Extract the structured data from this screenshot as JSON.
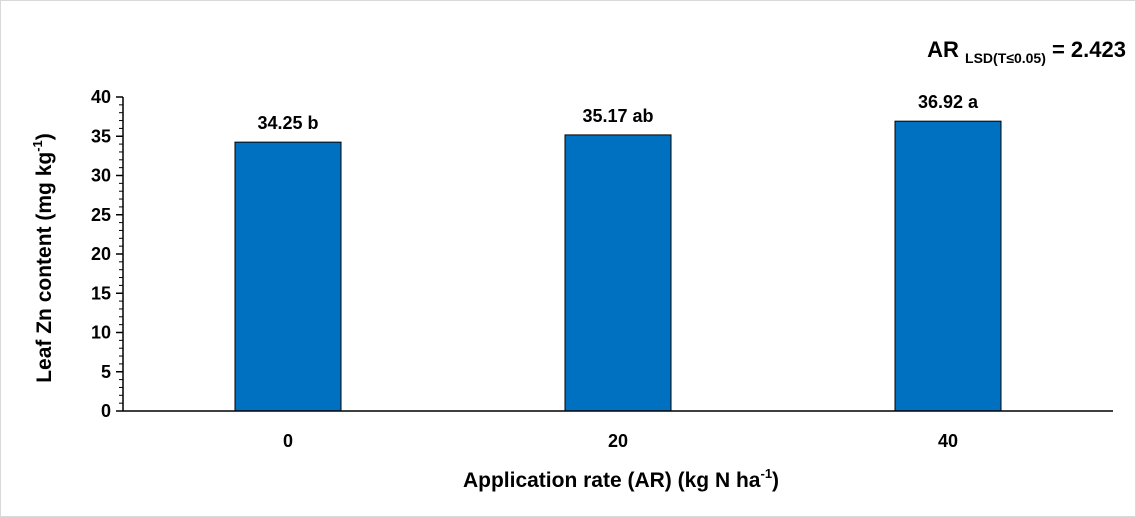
{
  "chart_data": {
    "type": "bar",
    "categories": [
      "0",
      "20",
      "40"
    ],
    "values": [
      34.25,
      35.17,
      36.92
    ],
    "data_labels": [
      "34.25 b",
      "35.17 ab",
      "36.92 a"
    ],
    "ylim": [
      0,
      40
    ],
    "ytick_step": 5,
    "ylabel": {
      "main": "Leaf Zn content (mg kg",
      "sup": "-1",
      "end": ")"
    },
    "xlabel": {
      "main": "Application rate (AR) (kg N ha",
      "sup": "-1",
      "end": ")"
    },
    "annotation": {
      "main": "AR ",
      "sub": "LSD(T≤0.05)",
      "end": " = 2.423"
    },
    "bar_color": "#0070c0",
    "grid": false
  }
}
